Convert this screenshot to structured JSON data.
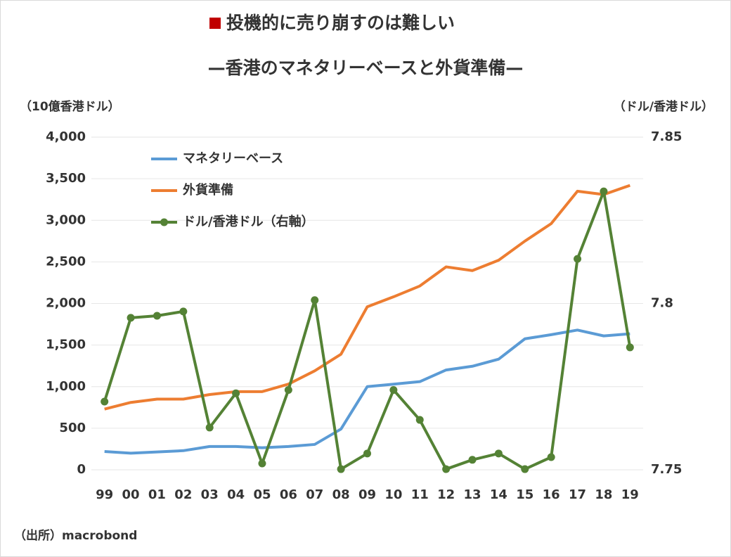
{
  "chart_data": {
    "type": "line",
    "title": "投機的に売り崩すのは難しい",
    "subtitle": "—香港のマネタリーベースと外貨準備—",
    "y_label": "（10億香港ドル）",
    "y2_label": "（ドル/香港ドル）",
    "source": "（出所）macrobond",
    "categories": [
      "99",
      "00",
      "01",
      "02",
      "03",
      "04",
      "05",
      "06",
      "07",
      "08",
      "09",
      "10",
      "11",
      "12",
      "13",
      "14",
      "15",
      "16",
      "17",
      "18",
      "19"
    ],
    "series": [
      {
        "name": "マネタリーベース",
        "color": "#5b9bd5",
        "values": [
          220,
          200,
          215,
          230,
          280,
          280,
          265,
          280,
          305,
          490,
          1000,
          1030,
          1060,
          1200,
          1245,
          1330,
          1575,
          1625,
          1680,
          1610,
          1635
        ]
      },
      {
        "name": "外貨準備",
        "color": "#ed7d31",
        "values": [
          730,
          810,
          850,
          850,
          905,
          940,
          940,
          1030,
          1190,
          1390,
          1960,
          2080,
          2210,
          2440,
          2395,
          2520,
          2750,
          2960,
          3350,
          3310,
          3420
        ]
      },
      {
        "name": "ドル/香港ドル（右軸）",
        "color": "#548235",
        "axis": "y2",
        "marker": true,
        "values": [
          7.7705,
          7.7957,
          7.7963,
          7.7976,
          7.7627,
          7.773,
          7.7519,
          7.774,
          7.801,
          7.7502,
          7.7549,
          7.774,
          7.765,
          7.7502,
          7.753,
          7.7549,
          7.7502,
          7.7538,
          7.8134,
          7.8337,
          7.7868
        ]
      }
    ],
    "ylim": [
      0,
      4000
    ],
    "yticks": [
      0,
      500,
      {
        "value": 1000,
        "label": "1,000"
      },
      {
        "value": 1500,
        "label": "1,500"
      },
      {
        "value": 2000,
        "label": "2,000"
      },
      {
        "value": 2500,
        "label": "2,500"
      },
      {
        "value": 3000,
        "label": "3,000"
      },
      {
        "value": 3500,
        "label": "3,500"
      },
      {
        "value": 4000,
        "label": "4,000"
      }
    ],
    "y2lim": [
      7.75,
      7.85
    ],
    "y2ticks": [
      7.75,
      7.8,
      7.85
    ],
    "grid": true,
    "legend": "upper left"
  }
}
